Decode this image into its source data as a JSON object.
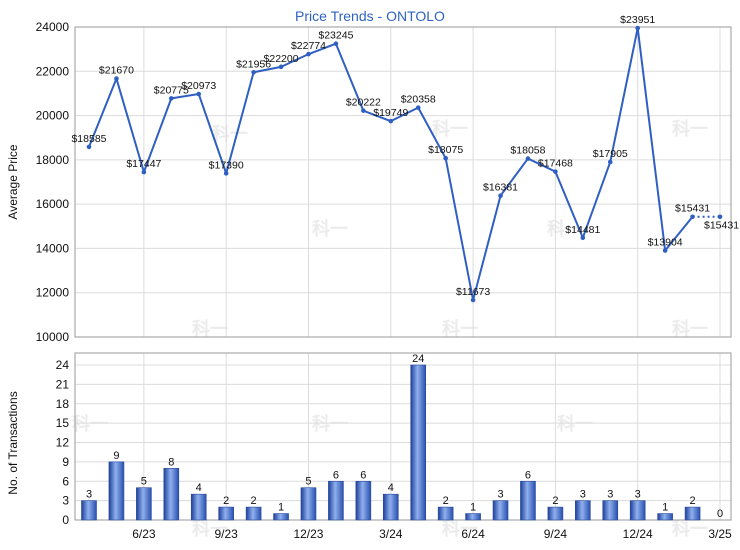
{
  "chart_data": [
    {
      "type": "line",
      "title": "Price Trends - ONTOLO",
      "ylabel": "Average Price",
      "ylim": [
        10000,
        24000
      ],
      "yticks": [
        10000,
        12000,
        14000,
        16000,
        18000,
        20000,
        22000,
        24000
      ],
      "grid": true,
      "series": [
        {
          "values": [
            18585,
            21670,
            17447,
            20775,
            20973,
            17390,
            21956,
            22200,
            22774,
            23245,
            20222,
            19749,
            20358,
            18075,
            11673,
            16381,
            18058,
            17468,
            14481,
            17905,
            23951,
            13904,
            15431,
            15431
          ],
          "labels": [
            "$18585",
            "$21670",
            "$17447",
            "$20775",
            "$20973",
            "$17390",
            "$21956",
            "$22200",
            "$22774",
            "$23245",
            "$20222",
            "$19749",
            "$20358",
            "$18075",
            "$11673",
            "$16381",
            "$18058",
            "$17468",
            "$14481",
            "$17905",
            "$23951",
            "$13904",
            "$15431",
            "$15431"
          ],
          "color": "#2f5fc2",
          "last_segment_style": "dotted"
        }
      ]
    },
    {
      "type": "bar",
      "ylabel": "No. of Transactions",
      "ylim": [
        0,
        24
      ],
      "yticks": [
        0,
        3,
        6,
        9,
        12,
        15,
        18,
        21,
        24
      ],
      "xtick_labels": [
        "6/23",
        "9/23",
        "12/23",
        "3/24",
        "6/24",
        "9/24",
        "12/24",
        "3/25"
      ],
      "grid": true,
      "values": [
        3,
        9,
        5,
        8,
        4,
        2,
        2,
        1,
        5,
        6,
        6,
        4,
        24,
        2,
        1,
        3,
        6,
        2,
        3,
        3,
        3,
        1,
        2,
        0
      ],
      "color": "#3a67c6"
    }
  ],
  "watermark": "科一"
}
